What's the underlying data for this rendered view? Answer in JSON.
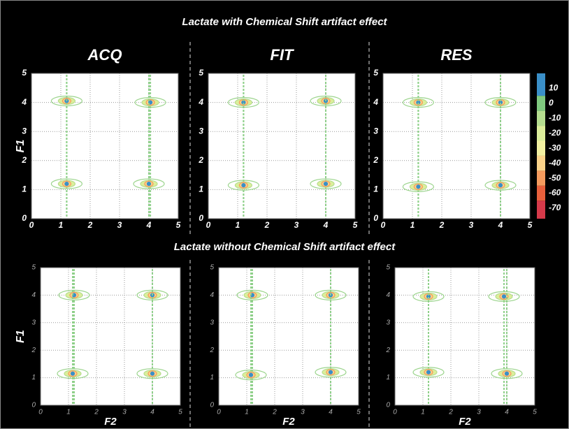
{
  "sections": [
    {
      "title": "Lactate with Chemical Shift artifact effect"
    },
    {
      "title": "Lactate without Chemical Shift artifact effect"
    }
  ],
  "chart_data": [
    {
      "type": "contour",
      "title": "ACQ",
      "ylabel": "F1",
      "xlim": [
        0,
        5
      ],
      "ylim": [
        0,
        5
      ],
      "xticks": [
        0,
        1,
        2,
        3,
        4,
        5
      ],
      "yticks": [
        0,
        1,
        2,
        3,
        4,
        5
      ],
      "grid": true,
      "x": [
        1.2,
        4.05,
        1.2,
        4.0
      ],
      "values": [
        4.05,
        4.0,
        1.2,
        1.2
      ]
    },
    {
      "type": "contour",
      "title": "FIT",
      "xlim": [
        0,
        5
      ],
      "ylim": [
        0,
        5
      ],
      "xticks": [
        0,
        1,
        2,
        3,
        4,
        5
      ],
      "yticks": [
        0,
        1,
        2,
        3,
        4,
        5
      ],
      "grid": true,
      "x": [
        1.2,
        4.0,
        1.2,
        4.0
      ],
      "values": [
        4.0,
        4.05,
        1.15,
        1.2
      ]
    },
    {
      "type": "contour",
      "title": "RES",
      "xlim": [
        0,
        5
      ],
      "ylim": [
        0,
        5
      ],
      "xticks": [
        0,
        1,
        2,
        3,
        4,
        5
      ],
      "yticks": [
        0,
        1,
        2,
        3,
        4,
        5
      ],
      "grid": true,
      "x": [
        1.2,
        4.0,
        1.2,
        4.0
      ],
      "values": [
        4.0,
        4.0,
        1.1,
        1.15
      ]
    },
    {
      "type": "colorbar",
      "ylim": [
        -77,
        20
      ],
      "yticks": [
        10,
        0,
        -10,
        -20,
        -30,
        -40,
        -50,
        -60,
        -70
      ],
      "colors": [
        "#3a8fc8",
        "#7fc97f",
        "#b5dd8f",
        "#dcee9b",
        "#f2f0a0",
        "#fbd38a",
        "#f59b5e",
        "#e8603c",
        "#d63a4a"
      ]
    },
    {
      "type": "contour",
      "ylabel": "F1",
      "xlabel": "F2",
      "xlim": [
        0,
        5
      ],
      "ylim": [
        0,
        5
      ],
      "xticks": [
        0,
        1,
        2,
        3,
        4,
        5
      ],
      "yticks": [
        0,
        1,
        2,
        3,
        4,
        5
      ],
      "grid": true,
      "x": [
        1.2,
        4.0,
        1.15,
        4.0
      ],
      "values": [
        4.0,
        4.0,
        1.15,
        1.15
      ]
    },
    {
      "type": "contour",
      "xlabel": "F2",
      "xlim": [
        0,
        5
      ],
      "ylim": [
        0,
        5
      ],
      "xticks": [
        0,
        1,
        2,
        3,
        4,
        5
      ],
      "yticks": [
        0,
        1,
        2,
        3,
        4,
        5
      ],
      "grid": true,
      "x": [
        1.2,
        4.0,
        1.15,
        4.0
      ],
      "values": [
        4.0,
        4.0,
        1.1,
        1.2
      ]
    },
    {
      "type": "contour",
      "xlabel": "F2",
      "xlim": [
        0,
        5
      ],
      "ylim": [
        0,
        5
      ],
      "xticks": [
        0,
        1,
        2,
        3,
        4,
        5
      ],
      "yticks": [
        0,
        1,
        2,
        3,
        4,
        5
      ],
      "grid": true,
      "x": [
        1.2,
        3.9,
        1.2,
        4.0
      ],
      "values": [
        3.95,
        3.95,
        1.2,
        1.15
      ]
    }
  ]
}
